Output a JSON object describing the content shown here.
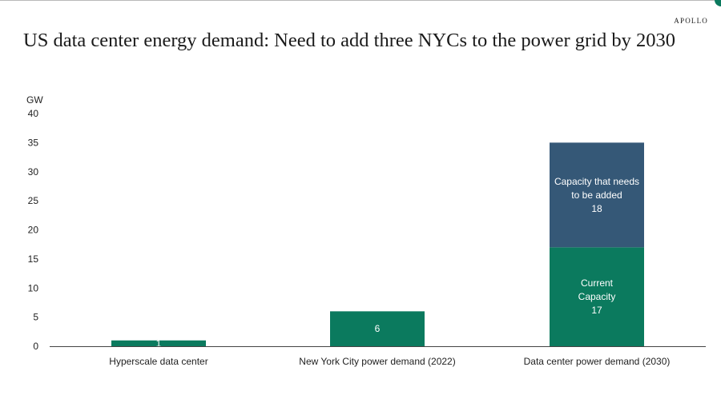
{
  "brand": "APOLLO",
  "title": "US data center energy demand: Need to add three NYCs to the power grid by 2030",
  "chart_data": {
    "type": "bar",
    "stacked": true,
    "ylabel": "GW",
    "ylim": [
      0,
      40
    ],
    "yticks": [
      0,
      5,
      10,
      15,
      20,
      25,
      30,
      35,
      40
    ],
    "grid": false,
    "categories": [
      "Hyperscale data center",
      "New York City power demand (2022)",
      "Data center power demand (2030)"
    ],
    "bars": [
      {
        "category": "Hyperscale data center",
        "segments": [
          {
            "value": 1,
            "label": [
              "1"
            ],
            "color": "#0b7a5e"
          }
        ]
      },
      {
        "category": "New York City power demand (2022)",
        "segments": [
          {
            "value": 6,
            "label": [
              "6"
            ],
            "color": "#0b7a5e"
          }
        ]
      },
      {
        "category": "Data center power demand (2030)",
        "segments": [
          {
            "value": 17,
            "label": [
              "Current",
              "Capacity",
              "17"
            ],
            "color": "#0b7a5e"
          },
          {
            "value": 18,
            "label": [
              "Capacity that needs",
              "to be added",
              "18"
            ],
            "color": "#355877"
          }
        ]
      }
    ]
  }
}
